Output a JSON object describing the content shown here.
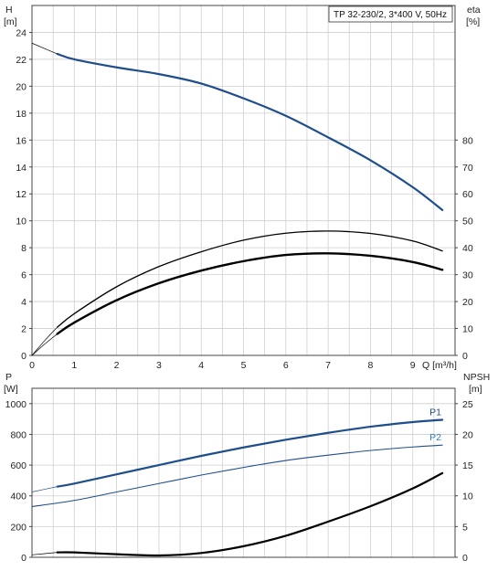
{
  "chart_data": [
    {
      "type": "line",
      "legend": "TP 32-230/2, 3*400 V, 50Hz",
      "xlabel": "Q [m³/h]",
      "xlim": [
        0,
        10
      ],
      "x_ticks": [
        "0",
        "1",
        "2",
        "3",
        "4",
        "5",
        "6",
        "7",
        "8",
        "9"
      ],
      "left_axis": {
        "label_top": "H",
        "label_unit": "[m]",
        "ylim": [
          0,
          26
        ],
        "ticks": [
          "0",
          "2",
          "4",
          "6",
          "8",
          "10",
          "12",
          "14",
          "16",
          "18",
          "20",
          "22",
          "24"
        ]
      },
      "right_axis": {
        "label_top": "eta",
        "label_unit": "[%]",
        "ylim": [
          0,
          130
        ],
        "ticks": [
          "0",
          "10",
          "20",
          "30",
          "40",
          "50",
          "60",
          "70",
          "80"
        ]
      },
      "grid": true,
      "series": [
        {
          "axis": "left",
          "color": "#1f4e8c",
          "width": 2.2,
          "x": [
            0.6,
            1,
            2,
            3,
            4,
            5,
            6,
            7,
            8,
            9,
            9.7
          ],
          "y": [
            22.4,
            22.0,
            21.4,
            20.9,
            20.2,
            19.1,
            17.8,
            16.2,
            14.5,
            12.5,
            10.8
          ]
        },
        {
          "axis": "left",
          "color": "#000000",
          "width": 0.7,
          "x": [
            0,
            0.6
          ],
          "y": [
            23.2,
            22.4
          ]
        },
        {
          "axis": "right",
          "color": "#000000",
          "width": 1.3,
          "x": [
            0.6,
            1,
            2,
            3,
            4,
            5,
            6,
            7,
            8,
            9,
            9.7
          ],
          "y": [
            10.5,
            15.5,
            25.5,
            33,
            38.5,
            42.8,
            45.4,
            46.2,
            45.3,
            42.5,
            38.8
          ]
        },
        {
          "axis": "right",
          "color": "#000000",
          "width": 2.4,
          "x": [
            0.6,
            1,
            2,
            3,
            4,
            5,
            6,
            7,
            8,
            9,
            9.7
          ],
          "y": [
            8,
            12.2,
            20.5,
            26.8,
            31.5,
            35,
            37.3,
            37.9,
            37,
            34.7,
            31.8
          ]
        },
        {
          "axis": "right",
          "color": "#000000",
          "width": 0.7,
          "x": [
            0,
            0.3,
            0.6
          ],
          "y": [
            0,
            5.5,
            10.5
          ]
        },
        {
          "axis": "right",
          "color": "#000000",
          "width": 0.7,
          "x": [
            0,
            0.3,
            0.6
          ],
          "y": [
            0,
            4.2,
            8
          ]
        }
      ]
    },
    {
      "type": "line",
      "xlim": [
        0,
        10
      ],
      "left_axis": {
        "label_top": "P",
        "label_unit": "[W]",
        "ylim": [
          0,
          1100
        ],
        "ticks": [
          "0",
          "200",
          "400",
          "600",
          "800",
          "1000"
        ]
      },
      "right_axis": {
        "label_top": "NPSH",
        "label_unit": "[m]",
        "ylim": [
          0,
          27.5
        ],
        "ticks": [
          "0",
          "5",
          "10",
          "15",
          "20",
          "25"
        ]
      },
      "grid": true,
      "series": [
        {
          "name": "P1",
          "axis": "left",
          "color": "#1f4e8c",
          "width": 2.2,
          "label_color": "#1f4e8c",
          "x": [
            0.6,
            1,
            2,
            3,
            4,
            5,
            6,
            7,
            8,
            9,
            9.7
          ],
          "y": [
            460,
            480,
            540,
            600,
            660,
            715,
            765,
            810,
            850,
            880,
            895
          ]
        },
        {
          "axis": "left",
          "color": "#1f4e8c",
          "width": 0.7,
          "x": [
            0,
            0.6
          ],
          "y": [
            425,
            460
          ]
        },
        {
          "name": "P2",
          "axis": "left",
          "color": "#1f4e8c",
          "width": 1.1,
          "label_color": "#2f7fc1",
          "x": [
            0,
            1,
            2,
            3,
            4,
            5,
            6,
            7,
            8,
            9,
            9.7
          ],
          "y": [
            330,
            370,
            425,
            480,
            535,
            585,
            630,
            665,
            695,
            718,
            730
          ]
        },
        {
          "axis": "right",
          "color": "#000000",
          "width": 2.2,
          "x": [
            0.6,
            1,
            2,
            3,
            4,
            5,
            6,
            7,
            8,
            9,
            9.7
          ],
          "y": [
            0.8,
            0.8,
            0.5,
            0.3,
            0.7,
            1.8,
            3.5,
            5.8,
            8.3,
            11.2,
            13.7
          ]
        },
        {
          "axis": "right",
          "color": "#000000",
          "width": 0.7,
          "x": [
            0,
            0.6
          ],
          "y": [
            0.4,
            0.8
          ]
        }
      ]
    }
  ]
}
